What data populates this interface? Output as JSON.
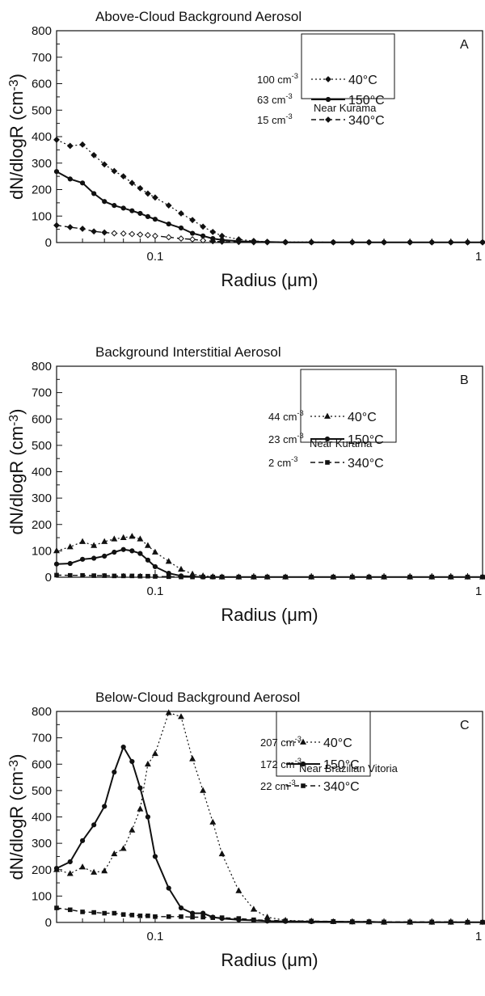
{
  "chart_data": [
    {
      "type": "line",
      "title": "Above-Cloud  Background  Aerosol",
      "panel_label": "A",
      "annotation": "Near Kurama",
      "xlabel": "Radius (μm)",
      "ylabel": "dN/dlogR (cm-3)",
      "xscale": "log",
      "xlim": [
        0.05,
        1
      ],
      "ylim": [
        0,
        800
      ],
      "xticks": [
        "0.1",
        "1"
      ],
      "yticks": [
        "0",
        "100",
        "200",
        "300",
        "400",
        "500",
        "600",
        "700",
        "800"
      ],
      "legend_position": "top-right",
      "series": [
        {
          "name": "40°C",
          "concentration": "100 cm-3",
          "style": "dotted",
          "marker": "diamond",
          "x": [
            0.05,
            0.055,
            0.06,
            0.065,
            0.07,
            0.075,
            0.08,
            0.085,
            0.09,
            0.095,
            0.1,
            0.11,
            0.12,
            0.13,
            0.14,
            0.15,
            0.16,
            0.18,
            0.2,
            0.22,
            0.25,
            0.3,
            0.35,
            0.4,
            0.45,
            0.5,
            0.6,
            0.7,
            0.8,
            0.9,
            1.0
          ],
          "y": [
            388,
            365,
            370,
            330,
            295,
            270,
            250,
            225,
            205,
            185,
            170,
            140,
            110,
            85,
            60,
            40,
            25,
            12,
            6,
            3,
            2,
            2,
            1,
            1,
            1,
            1,
            1,
            1,
            1,
            1,
            1
          ]
        },
        {
          "name": "150°C",
          "concentration": "63 cm-3",
          "style": "solid",
          "marker": "circle",
          "x": [
            0.05,
            0.055,
            0.06,
            0.065,
            0.07,
            0.075,
            0.08,
            0.085,
            0.09,
            0.095,
            0.1,
            0.11,
            0.12,
            0.13,
            0.14,
            0.15,
            0.16,
            0.18,
            0.2,
            0.22,
            0.25,
            0.3,
            0.35,
            0.4,
            0.45,
            0.5,
            0.6,
            0.7,
            0.8,
            0.9,
            1.0
          ],
          "y": [
            268,
            240,
            225,
            185,
            155,
            140,
            130,
            120,
            110,
            98,
            88,
            70,
            55,
            35,
            25,
            15,
            10,
            5,
            3,
            2,
            1,
            1,
            1,
            1,
            1,
            1,
            1,
            1,
            1,
            1,
            1
          ]
        },
        {
          "name": "340°C",
          "concentration": "15 cm-3",
          "style": "dashed",
          "marker": "diamond",
          "x": [
            0.05,
            0.055,
            0.06,
            0.065,
            0.07,
            0.075,
            0.08,
            0.085,
            0.09,
            0.095,
            0.1,
            0.11,
            0.12,
            0.13,
            0.14,
            0.15,
            0.16,
            0.18,
            0.2,
            0.22,
            0.25,
            0.3,
            0.35,
            0.4,
            0.45,
            0.5,
            0.6,
            0.7,
            0.8,
            0.9,
            1.0
          ],
          "y": [
            65,
            58,
            52,
            42,
            38,
            35,
            34,
            32,
            30,
            28,
            25,
            20,
            15,
            12,
            8,
            5,
            3,
            2,
            1,
            1,
            1,
            1,
            1,
            1,
            1,
            1,
            1,
            1,
            1,
            1,
            1
          ]
        }
      ]
    },
    {
      "type": "line",
      "title": "Background  Interstitial  Aerosol",
      "panel_label": "B",
      "annotation": "Near Kurama",
      "xlabel": "Radius (μm)",
      "ylabel": "dN/dlogR (cm-3)",
      "xscale": "log",
      "xlim": [
        0.05,
        1
      ],
      "ylim": [
        0,
        800
      ],
      "xticks": [
        "0.1",
        "1"
      ],
      "yticks": [
        "0",
        "100",
        "200",
        "300",
        "400",
        "500",
        "600",
        "700",
        "800"
      ],
      "legend_position": "top-right",
      "series": [
        {
          "name": "40°C",
          "concentration": "44 cm-3",
          "style": "dotted",
          "marker": "triangle",
          "x": [
            0.05,
            0.055,
            0.06,
            0.065,
            0.07,
            0.075,
            0.08,
            0.085,
            0.09,
            0.095,
            0.1,
            0.11,
            0.12,
            0.13,
            0.14,
            0.15,
            0.16,
            0.18,
            0.2,
            0.22,
            0.25,
            0.3,
            0.35,
            0.4,
            0.45,
            0.5,
            0.6,
            0.7,
            0.8,
            0.9,
            1.0
          ],
          "y": [
            100,
            115,
            135,
            120,
            135,
            145,
            150,
            155,
            145,
            120,
            95,
            60,
            30,
            12,
            5,
            2,
            1,
            1,
            1,
            1,
            1,
            1,
            1,
            1,
            1,
            1,
            1,
            1,
            1,
            1,
            1
          ]
        },
        {
          "name": "150°C",
          "concentration": "23 cm-3",
          "style": "solid",
          "marker": "circle",
          "x": [
            0.05,
            0.055,
            0.06,
            0.065,
            0.07,
            0.075,
            0.08,
            0.085,
            0.09,
            0.095,
            0.1,
            0.11,
            0.12,
            0.13,
            0.14,
            0.15,
            0.16,
            0.18,
            0.2,
            0.22,
            0.25,
            0.3,
            0.35,
            0.4,
            0.45,
            0.5,
            0.6,
            0.7,
            0.8,
            0.9,
            1.0
          ],
          "y": [
            50,
            52,
            68,
            72,
            80,
            95,
            105,
            100,
            90,
            65,
            40,
            15,
            5,
            2,
            1,
            1,
            1,
            1,
            1,
            1,
            1,
            1,
            1,
            1,
            1,
            1,
            1,
            1,
            1,
            1,
            1
          ]
        },
        {
          "name": "340°C",
          "concentration": "2 cm-3",
          "style": "dashed",
          "marker": "square",
          "x": [
            0.05,
            0.055,
            0.06,
            0.065,
            0.07,
            0.075,
            0.08,
            0.085,
            0.09,
            0.095,
            0.1,
            0.11,
            0.12,
            0.13,
            0.14,
            0.15,
            0.16,
            0.18,
            0.2,
            0.22,
            0.25,
            0.3,
            0.35,
            0.4,
            0.45,
            0.5,
            0.6,
            0.7,
            0.8,
            0.9,
            1.0
          ],
          "y": [
            8,
            7,
            7,
            6,
            6,
            5,
            5,
            5,
            4,
            4,
            3,
            2,
            1,
            1,
            1,
            1,
            1,
            1,
            1,
            1,
            1,
            1,
            1,
            1,
            1,
            1,
            1,
            1,
            1,
            1,
            1
          ]
        }
      ]
    },
    {
      "type": "line",
      "title": "Below-Cloud  Background  Aerosol",
      "panel_label": "C",
      "annotation": "Near Brazilian Vitoria",
      "xlabel": "Radius (μm)",
      "ylabel": "dN/dlogR (cm-3)",
      "xscale": "log",
      "xlim": [
        0.05,
        1
      ],
      "ylim": [
        0,
        800
      ],
      "xticks": [
        "0.1",
        "1"
      ],
      "yticks": [
        "0",
        "100",
        "200",
        "300",
        "400",
        "500",
        "600",
        "700",
        "800"
      ],
      "legend_position": "top-right",
      "series": [
        {
          "name": "40°C",
          "concentration": "207 cm-3",
          "style": "dotted",
          "marker": "triangle",
          "x": [
            0.05,
            0.055,
            0.06,
            0.065,
            0.07,
            0.075,
            0.08,
            0.085,
            0.09,
            0.095,
            0.1,
            0.11,
            0.12,
            0.13,
            0.14,
            0.15,
            0.16,
            0.18,
            0.2,
            0.22,
            0.25,
            0.3,
            0.35,
            0.4,
            0.45,
            0.5,
            0.6,
            0.7,
            0.8,
            0.9,
            1.0
          ],
          "y": [
            200,
            185,
            210,
            190,
            195,
            260,
            280,
            350,
            430,
            600,
            640,
            795,
            780,
            620,
            500,
            380,
            260,
            120,
            50,
            20,
            8,
            5,
            3,
            2,
            2,
            1,
            1,
            1,
            1,
            1,
            1
          ]
        },
        {
          "name": "150°C",
          "concentration": "172 cm-3",
          "style": "solid",
          "marker": "circle",
          "x": [
            0.05,
            0.055,
            0.06,
            0.065,
            0.07,
            0.075,
            0.08,
            0.085,
            0.09,
            0.095,
            0.1,
            0.11,
            0.12,
            0.13,
            0.14,
            0.15,
            0.16,
            0.18,
            0.2,
            0.22,
            0.25,
            0.3,
            0.35,
            0.4,
            0.45,
            0.5,
            0.6,
            0.7,
            0.8,
            0.9,
            1.0
          ],
          "y": [
            205,
            230,
            310,
            370,
            440,
            570,
            665,
            610,
            510,
            400,
            250,
            130,
            55,
            35,
            35,
            20,
            15,
            10,
            8,
            5,
            4,
            3,
            3,
            2,
            2,
            1,
            1,
            1,
            1,
            1,
            1
          ]
        },
        {
          "name": "340°C",
          "concentration": "22 cm-3",
          "style": "dashed",
          "marker": "square",
          "x": [
            0.05,
            0.055,
            0.06,
            0.065,
            0.07,
            0.075,
            0.08,
            0.085,
            0.09,
            0.095,
            0.1,
            0.11,
            0.12,
            0.13,
            0.14,
            0.15,
            0.16,
            0.18,
            0.2,
            0.22,
            0.25,
            0.3,
            0.35,
            0.4,
            0.45,
            0.5,
            0.6,
            0.7,
            0.8,
            0.9,
            1.0
          ],
          "y": [
            55,
            48,
            40,
            38,
            35,
            35,
            30,
            28,
            25,
            25,
            22,
            22,
            22,
            20,
            20,
            18,
            18,
            15,
            10,
            8,
            6,
            5,
            4,
            3,
            3,
            2,
            2,
            2,
            2,
            1,
            1
          ]
        }
      ]
    }
  ]
}
